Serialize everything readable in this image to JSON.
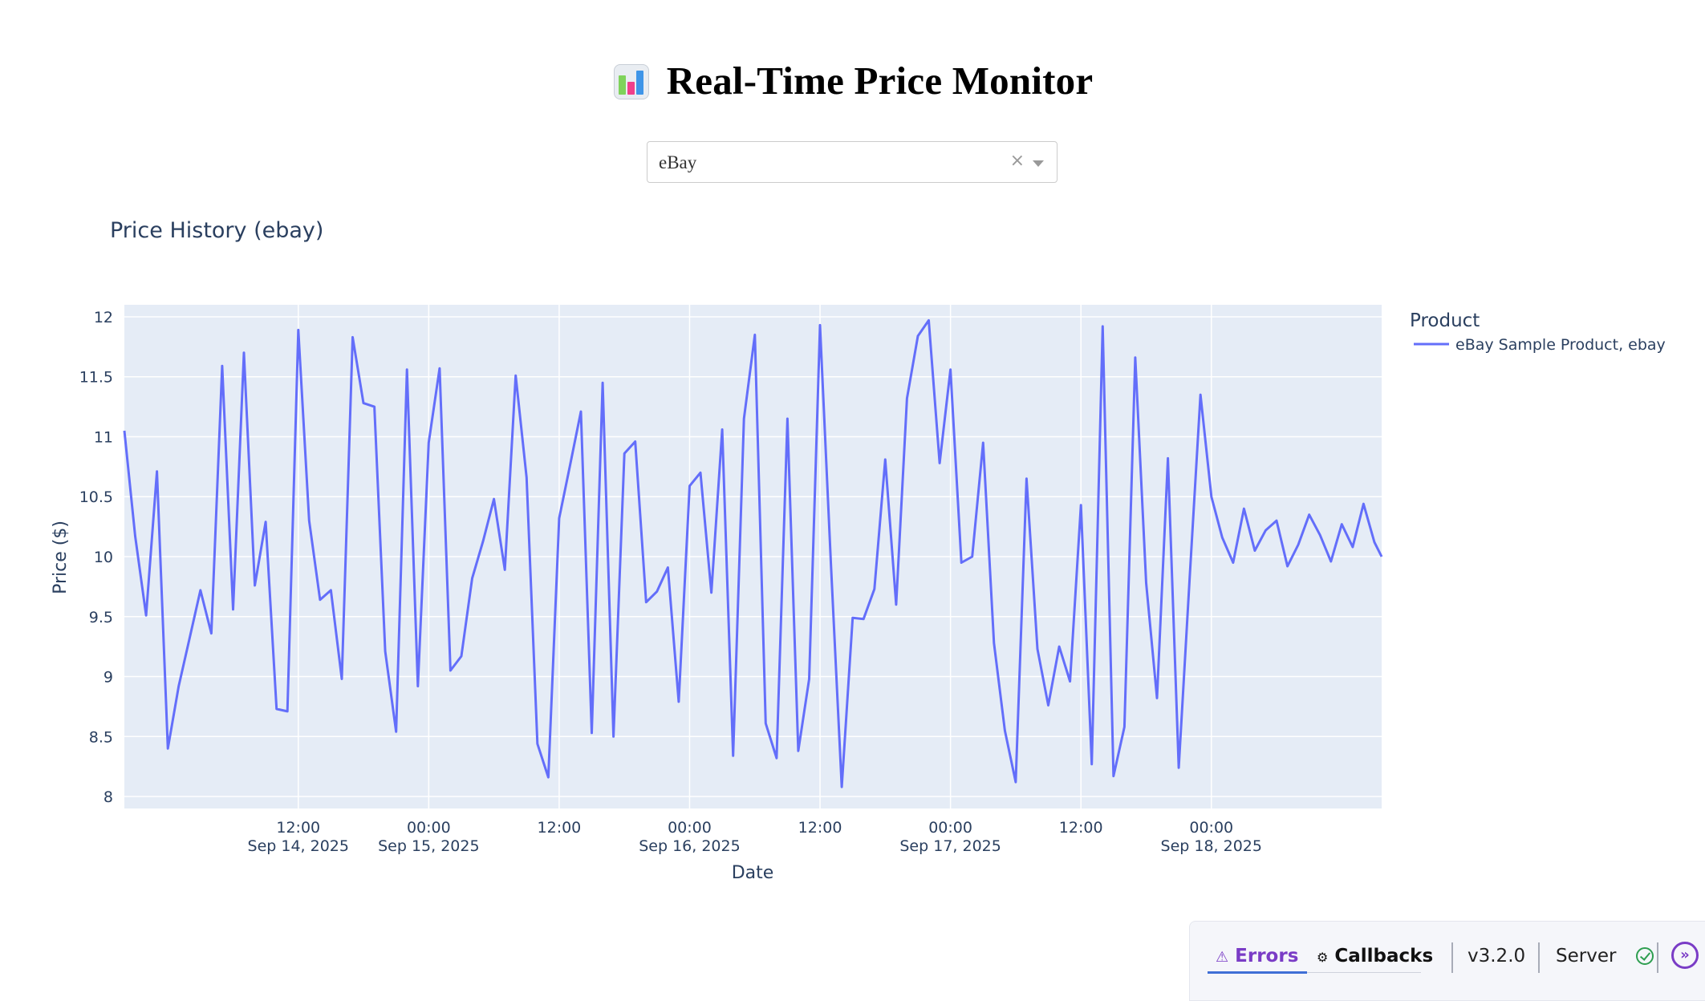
{
  "header": {
    "title": "Real-Time Price Monitor",
    "icon": "bar-chart-icon"
  },
  "dropdown": {
    "selected": "eBay",
    "clear_icon": "×"
  },
  "chart_data": {
    "type": "line",
    "title": "Price History (ebay)",
    "xlabel": "Date",
    "ylabel": "Price ($)",
    "legend_title": "Product",
    "legend_placement": "top-right",
    "grid": true,
    "color": "#636efa",
    "xlim": [
      "2025-09-13 20:00",
      "2025-09-18 15:40"
    ],
    "ylim": [
      7.9,
      12.1
    ],
    "y_ticks": [
      "8",
      "8.5",
      "9",
      "9.5",
      "10",
      "10.5",
      "11",
      "11.5",
      "12"
    ],
    "x_ticks": [
      {
        "time": "12:00",
        "date": "Sep 14, 2025",
        "at": "2025-09-14 12:00"
      },
      {
        "time": "00:00",
        "date": "Sep 15, 2025",
        "at": "2025-09-15 00:00"
      },
      {
        "time": "12:00",
        "date": "",
        "at": "2025-09-15 12:00"
      },
      {
        "time": "00:00",
        "date": "Sep 16, 2025",
        "at": "2025-09-16 00:00"
      },
      {
        "time": "12:00",
        "date": "",
        "at": "2025-09-16 12:00"
      },
      {
        "time": "00:00",
        "date": "Sep 17, 2025",
        "at": "2025-09-17 00:00"
      },
      {
        "time": "12:00",
        "date": "",
        "at": "2025-09-17 12:00"
      },
      {
        "time": "00:00",
        "date": "Sep 18, 2025",
        "at": "2025-09-18 00:00"
      }
    ],
    "series": [
      {
        "name": "eBay Sample Product, ebay",
        "x": [
          "2025-09-13 20:00",
          "2025-09-13 21:00",
          "2025-09-13 22:00",
          "2025-09-13 23:00",
          "2025-09-14 00:00",
          "2025-09-14 01:00",
          "2025-09-14 02:00",
          "2025-09-14 03:00",
          "2025-09-14 04:00",
          "2025-09-14 05:00",
          "2025-09-14 06:00",
          "2025-09-14 07:00",
          "2025-09-14 08:00",
          "2025-09-14 09:00",
          "2025-09-14 10:00",
          "2025-09-14 11:00",
          "2025-09-14 12:00",
          "2025-09-14 13:00",
          "2025-09-14 14:00",
          "2025-09-14 15:00",
          "2025-09-14 16:00",
          "2025-09-14 17:00",
          "2025-09-14 18:00",
          "2025-09-14 19:00",
          "2025-09-14 20:00",
          "2025-09-14 21:00",
          "2025-09-14 22:00",
          "2025-09-14 23:00",
          "2025-09-15 00:00",
          "2025-09-15 01:00",
          "2025-09-15 02:00",
          "2025-09-15 03:00",
          "2025-09-15 04:00",
          "2025-09-15 05:00",
          "2025-09-15 06:00",
          "2025-09-15 07:00",
          "2025-09-15 08:00",
          "2025-09-15 09:00",
          "2025-09-15 10:00",
          "2025-09-15 11:00",
          "2025-09-15 12:00",
          "2025-09-15 13:00",
          "2025-09-15 14:00",
          "2025-09-15 15:00",
          "2025-09-15 16:00",
          "2025-09-15 17:00",
          "2025-09-15 18:00",
          "2025-09-15 19:00",
          "2025-09-15 20:00",
          "2025-09-15 21:00",
          "2025-09-15 22:00",
          "2025-09-15 23:00",
          "2025-09-16 00:00",
          "2025-09-16 01:00",
          "2025-09-16 02:00",
          "2025-09-16 03:00",
          "2025-09-16 04:00",
          "2025-09-16 05:00",
          "2025-09-16 06:00",
          "2025-09-16 07:00",
          "2025-09-16 08:00",
          "2025-09-16 09:00",
          "2025-09-16 10:00",
          "2025-09-16 11:00",
          "2025-09-16 12:00",
          "2025-09-16 13:00",
          "2025-09-16 14:00",
          "2025-09-16 15:00",
          "2025-09-16 16:00",
          "2025-09-16 17:00",
          "2025-09-16 18:00",
          "2025-09-16 19:00",
          "2025-09-16 20:00",
          "2025-09-16 21:00",
          "2025-09-16 22:00",
          "2025-09-16 23:00",
          "2025-09-17 00:00",
          "2025-09-17 01:00",
          "2025-09-17 02:00",
          "2025-09-17 03:00",
          "2025-09-17 04:00",
          "2025-09-17 05:00",
          "2025-09-17 06:00",
          "2025-09-17 07:00",
          "2025-09-17 08:00",
          "2025-09-17 09:00",
          "2025-09-17 10:00",
          "2025-09-17 11:00",
          "2025-09-17 12:00",
          "2025-09-17 13:00",
          "2025-09-17 14:00",
          "2025-09-17 15:00",
          "2025-09-17 16:00",
          "2025-09-17 17:00",
          "2025-09-17 18:00",
          "2025-09-17 19:00",
          "2025-09-17 20:00",
          "2025-09-17 21:00",
          "2025-09-17 22:00",
          "2025-09-17 23:00",
          "2025-09-18 00:00",
          "2025-09-18 01:00",
          "2025-09-18 02:00",
          "2025-09-18 03:00",
          "2025-09-18 04:00",
          "2025-09-18 05:00",
          "2025-09-18 06:00",
          "2025-09-18 07:00",
          "2025-09-18 08:00",
          "2025-09-18 09:00",
          "2025-09-18 10:00",
          "2025-09-18 11:00",
          "2025-09-18 12:00",
          "2025-09-18 13:00",
          "2025-09-18 14:00",
          "2025-09-18 15:00",
          "2025-09-18 15:40"
        ],
        "y": [
          11.05,
          10.17,
          9.51,
          10.71,
          8.4,
          8.92,
          9.32,
          9.72,
          9.36,
          11.59,
          9.56,
          11.7,
          9.76,
          10.29,
          8.73,
          8.71,
          11.89,
          10.3,
          9.64,
          9.72,
          8.98,
          11.83,
          11.28,
          11.25,
          9.21,
          8.54,
          11.56,
          8.92,
          10.95,
          11.57,
          9.05,
          9.17,
          9.82,
          10.13,
          10.48,
          9.89,
          11.51,
          10.66,
          8.44,
          8.16,
          10.32,
          10.76,
          11.21,
          8.53,
          11.45,
          8.5,
          10.86,
          10.96,
          9.62,
          9.71,
          9.91,
          8.79,
          10.59,
          10.7,
          9.7,
          11.06,
          8.34,
          11.15,
          11.85,
          8.61,
          8.32,
          11.15,
          8.38,
          8.98,
          11.93,
          9.94,
          8.08,
          9.49,
          9.48,
          9.73,
          10.81,
          9.6,
          11.32,
          11.84,
          11.97,
          10.78,
          11.56,
          9.95,
          10.0,
          10.95,
          9.28,
          8.55,
          8.12,
          10.65,
          9.23,
          8.76,
          9.25,
          8.96,
          10.43,
          8.27,
          11.92,
          8.17,
          8.58,
          11.66,
          9.78,
          8.82,
          10.82,
          8.24,
          9.82,
          11.35,
          10.5,
          10.16,
          9.95,
          10.4,
          10.05,
          10.22,
          10.3,
          9.92,
          10.1,
          10.35,
          10.18,
          9.96,
          10.27,
          10.08,
          10.44,
          10.12,
          10.0
        ]
      }
    ]
  },
  "debug": {
    "errors_label": "Errors",
    "errors_icon": "⚠",
    "callbacks_label": "Callbacks",
    "callbacks_icon": "⚙",
    "version": "v3.2.0",
    "server_label": "Server",
    "expand_icon": "»"
  }
}
